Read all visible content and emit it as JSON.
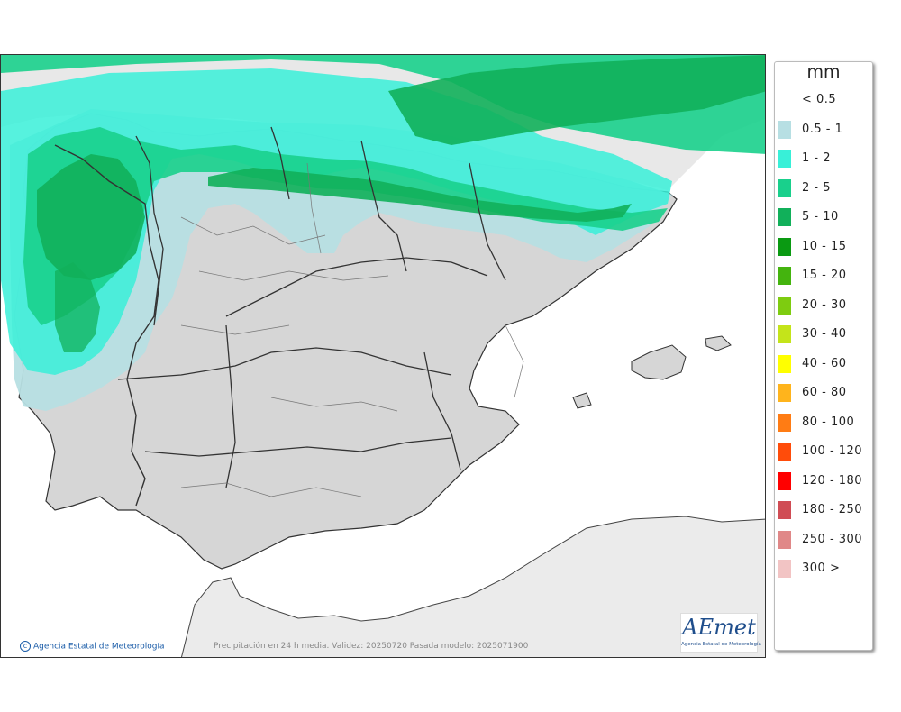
{
  "legend": {
    "unit": "mm",
    "items": [
      {
        "label": "< 0.5",
        "color": "#ffffff"
      },
      {
        "label": "0.5 - 1",
        "color": "#b7dfe3"
      },
      {
        "label": "1 - 2",
        "color": "#38f0d8"
      },
      {
        "label": "2 - 5",
        "color": "#19d08c"
      },
      {
        "label": "5 - 10",
        "color": "#11b05a"
      },
      {
        "label": "10 - 15",
        "color": "#0a9a12"
      },
      {
        "label": "15 - 20",
        "color": "#44b40e"
      },
      {
        "label": "20 - 30",
        "color": "#7ecc10"
      },
      {
        "label": "30 - 40",
        "color": "#c4e41a"
      },
      {
        "label": "40 - 60",
        "color": "#ffff00"
      },
      {
        "label": "60 - 80",
        "color": "#ffb41c"
      },
      {
        "label": "80 - 100",
        "color": "#ff7c14"
      },
      {
        "label": "100 - 120",
        "color": "#ff4c0a"
      },
      {
        "label": "120 - 180",
        "color": "#ff0000"
      },
      {
        "label": "180 - 250",
        "color": "#d04c54"
      },
      {
        "label": "250 - 300",
        "color": "#e08888"
      },
      {
        "label": "300 >",
        "color": "#f2c4c4"
      }
    ]
  },
  "footer": {
    "copyright": "Agencia Estatal de Meteorología",
    "copyright_symbol": "c",
    "caption": "Precipitación en 24 h media. Validez: 20250720 Pasada modelo: 2025071900"
  },
  "logo": {
    "word": "AEmet",
    "subtitle": "Agencia Estatal de Meteorología"
  },
  "colors": {
    "land": "#d6d6d6",
    "foreign_land": "#e8e8e8",
    "sea": "#ffffff",
    "border": "#333333",
    "light_precip": "#b7dfe3",
    "cyan_precip": "#38f0d8",
    "green_precip": "#19d08c",
    "dark_green_precip": "#11b05a"
  }
}
